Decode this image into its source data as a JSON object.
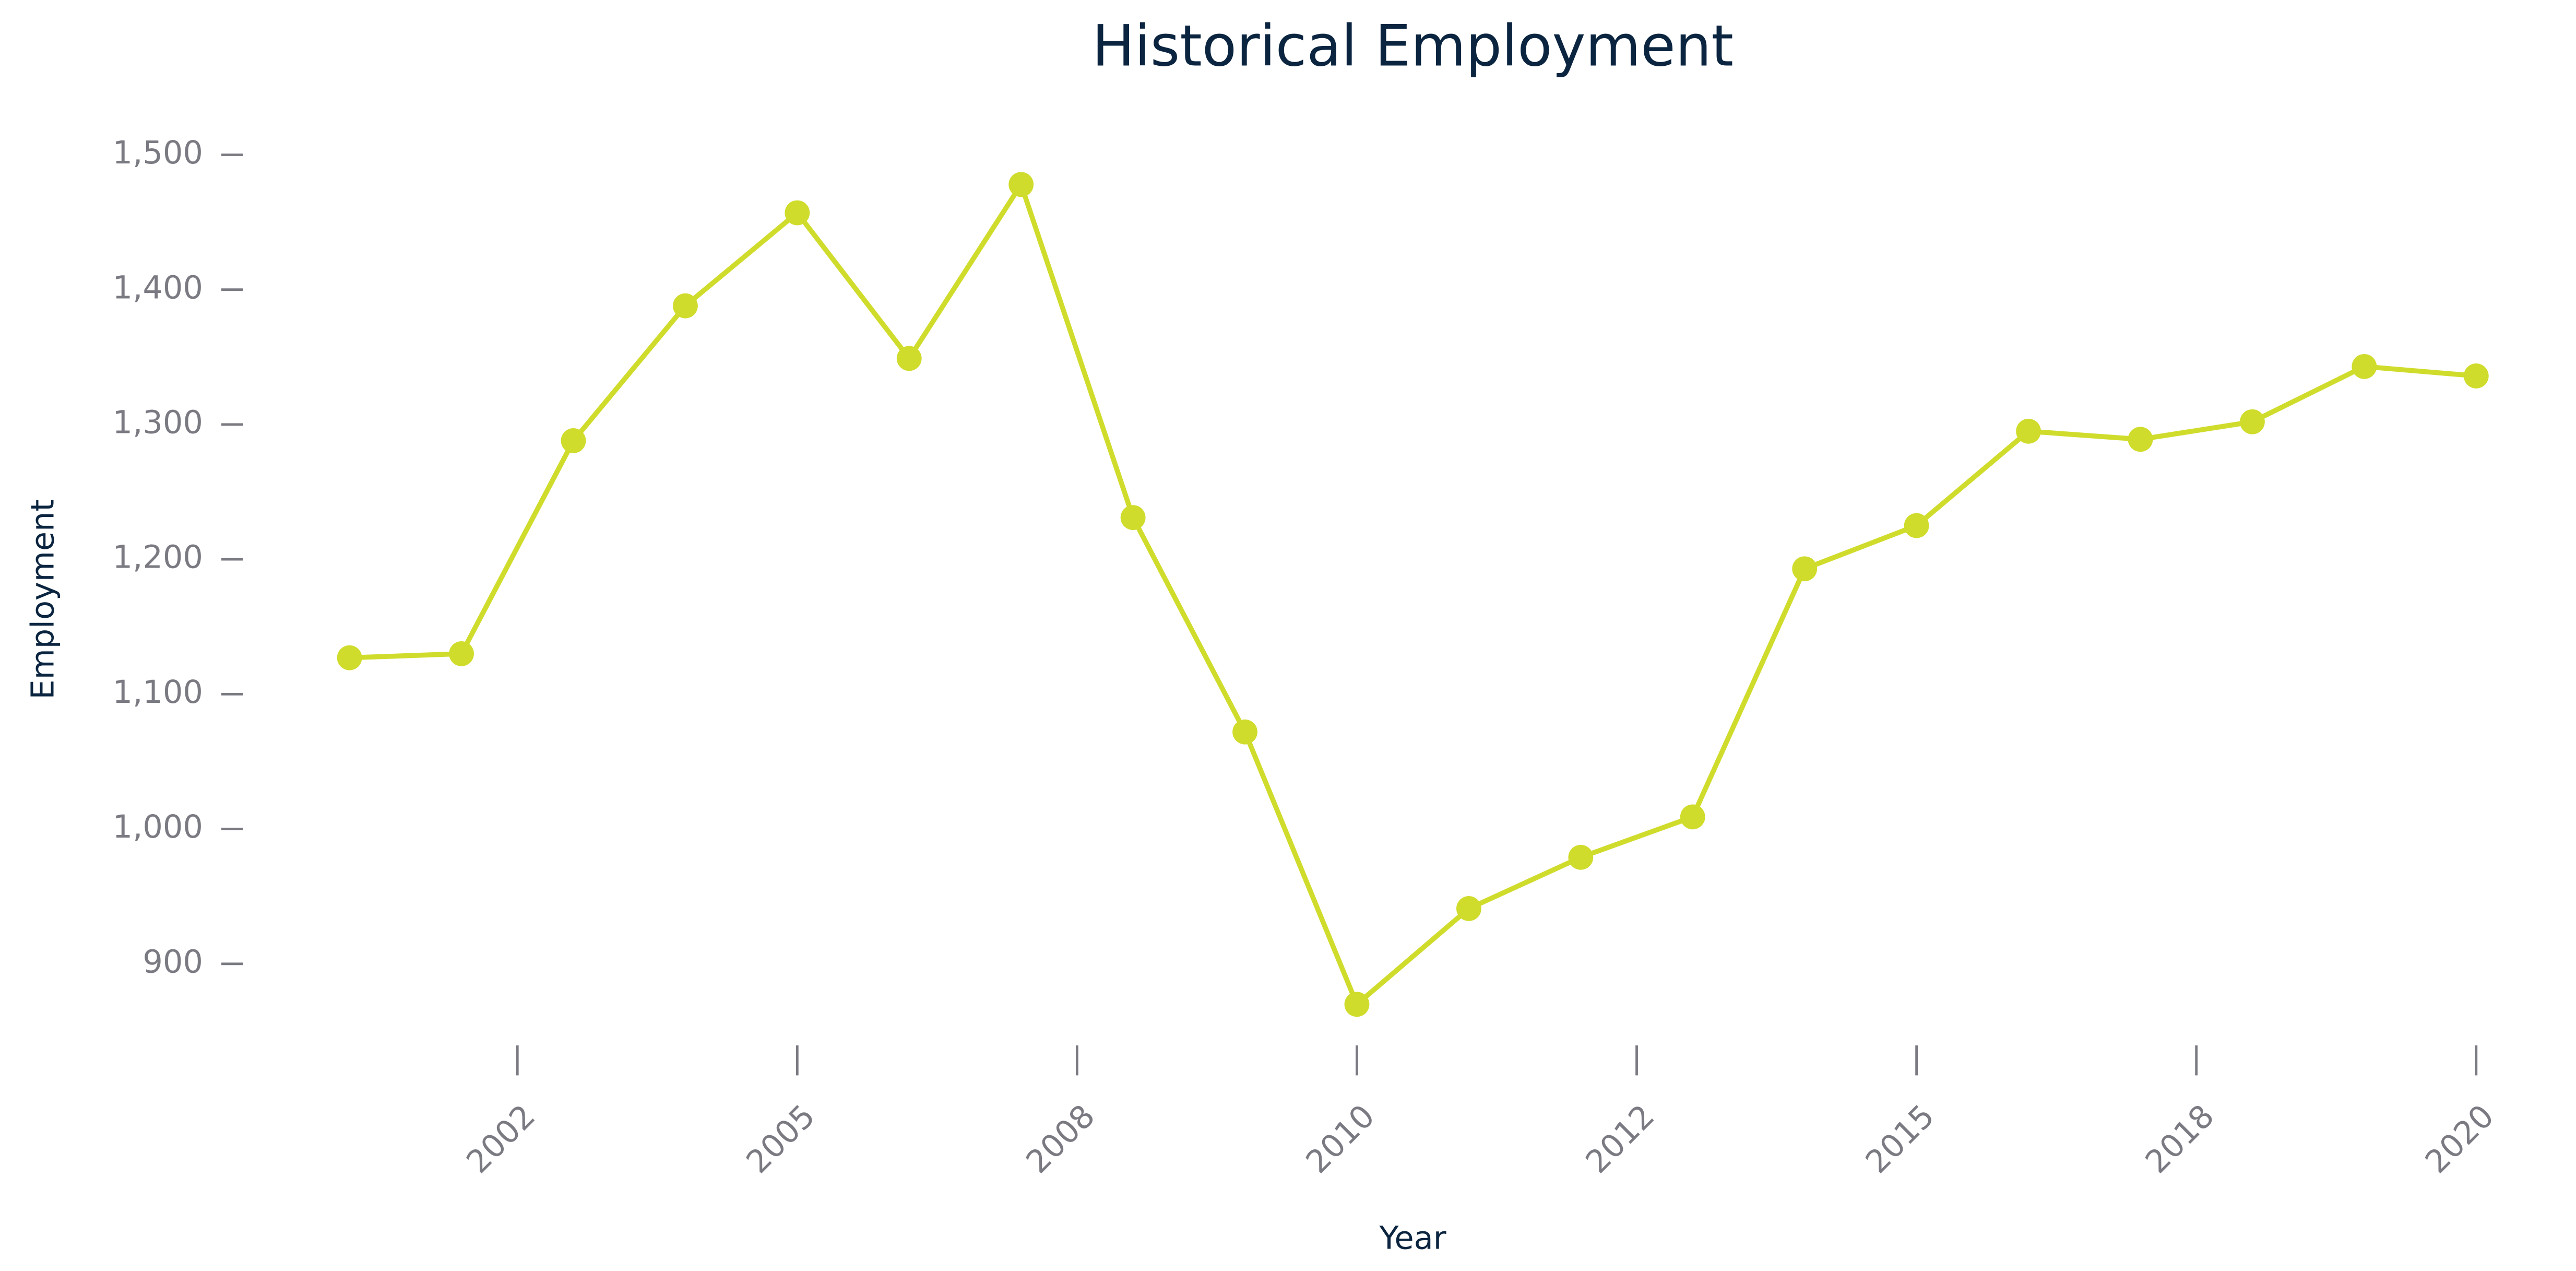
{
  "chart_data": {
    "type": "line",
    "title": "Historical Employment",
    "x_label": "Year",
    "y_label": "Employment",
    "x": [
      2001,
      2002,
      2003,
      2004,
      2005,
      2006,
      2007,
      2008,
      2009,
      2010,
      2011,
      2012,
      2013,
      2014,
      2015,
      2016,
      2017,
      2018,
      2019,
      2020
    ],
    "series": [
      {
        "name": "Employment",
        "color": "#d0dc2c",
        "values": [
          1127,
          1130,
          1288,
          1388,
          1457,
          1349,
          1478,
          1231,
          1072,
          870,
          941,
          979,
          1009,
          1193,
          1225,
          1295,
          1289,
          1302,
          1343,
          1336
        ]
      }
    ],
    "xlim": [
      2000.1,
      2020.3
    ],
    "xticks": [
      {
        "value": 2002.5,
        "label": "2002"
      },
      2005,
      {
        "value": 2007.5,
        "label": "2008"
      },
      2010,
      {
        "value": 2012.5,
        "label": "2012"
      },
      2015,
      {
        "value": 2017.5,
        "label": "2018"
      },
      2020
    ],
    "ylim": [
      840,
      1520
    ],
    "yticks": [
      900,
      {
        "value": 1000,
        "label": "1,000"
      },
      {
        "value": 1100,
        "label": "1,100"
      },
      {
        "value": 1200,
        "label": "1,200"
      },
      {
        "value": 1300,
        "label": "1,300"
      },
      {
        "value": 1400,
        "label": "1,400"
      },
      {
        "value": 1500,
        "label": "1,500"
      }
    ],
    "grid": false,
    "markers": true
  }
}
